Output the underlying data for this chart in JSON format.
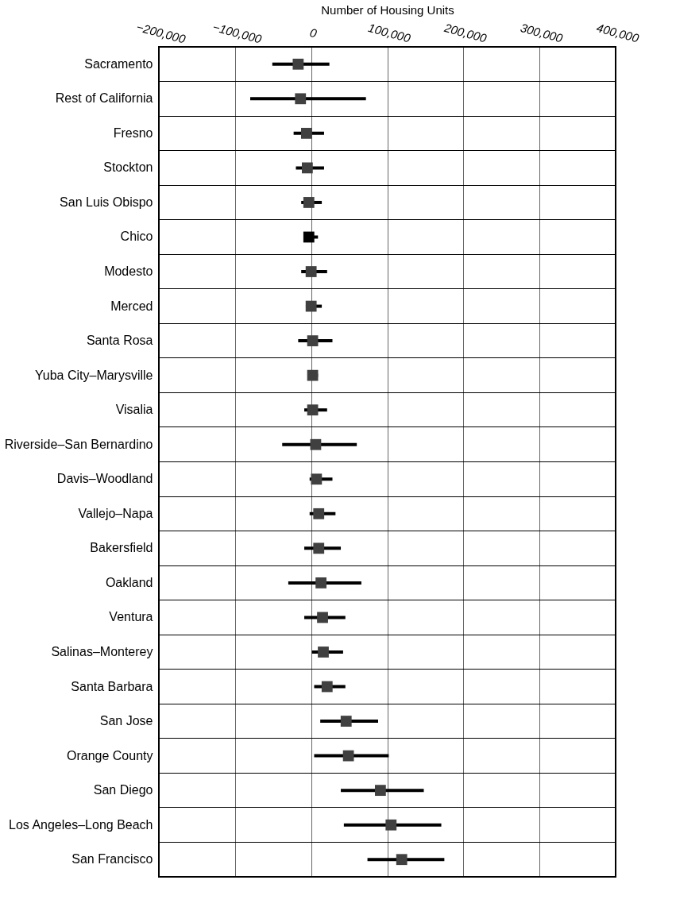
{
  "chart_data": {
    "type": "scatter",
    "orientation": "horizontal",
    "xlabel": "Number of Housing Units",
    "categories": [
      "Sacramento",
      "Rest of California",
      "Fresno",
      "Stockton",
      "San Luis Obispo",
      "Chico",
      "Modesto",
      "Merced",
      "Santa Rosa",
      "Yuba City–Marysville",
      "Visalia",
      "Riverside–San Bernardino",
      "Davis–Woodland",
      "Vallejo–Napa",
      "Bakersfield",
      "Oakland",
      "Ventura",
      "Salinas–Monterey",
      "Santa Barbara",
      "San Jose",
      "Orange County",
      "San Diego",
      "Los Angeles–Long Beach",
      "San Francisco"
    ],
    "values": [
      -17000,
      -14000,
      -6000,
      -5000,
      -3000,
      -3000,
      0,
      0,
      2000,
      2000,
      2000,
      6000,
      7000,
      10000,
      10000,
      13000,
      15000,
      16000,
      21000,
      46000,
      49000,
      91000,
      105000,
      119000
    ],
    "errors": [
      [
        -51000,
        24000
      ],
      [
        -80000,
        72000
      ],
      [
        -23000,
        17000
      ],
      [
        -20000,
        17000
      ],
      [
        -13000,
        14000
      ],
      [
        -10000,
        9000
      ],
      [
        -13000,
        21000
      ],
      [
        -7000,
        14000
      ],
      [
        -17000,
        28000
      ],
      [
        -4000,
        9000
      ],
      [
        -9000,
        21000
      ],
      [
        -38000,
        60000
      ],
      [
        -2000,
        28000
      ],
      [
        -2000,
        32000
      ],
      [
        -9000,
        39000
      ],
      [
        -30000,
        66000
      ],
      [
        -9000,
        45000
      ],
      [
        1000,
        42000
      ],
      [
        4000,
        45000
      ],
      [
        12000,
        88000
      ],
      [
        4000,
        102000
      ],
      [
        39000,
        148000
      ],
      [
        43000,
        171000
      ],
      [
        74000,
        175000
      ]
    ],
    "colors": [
      "#404040",
      "#404040",
      "#404040",
      "#404040",
      "#404040",
      "#000000",
      "#404040",
      "#404040",
      "#404040",
      "#404040",
      "#404040",
      "#404040",
      "#404040",
      "#404040",
      "#404040",
      "#404040",
      "#404040",
      "#404040",
      "#404040",
      "#404040",
      "#404040",
      "#404040",
      "#404040",
      "#404040"
    ],
    "xlim": [
      -200000,
      400000
    ],
    "xticks": [
      {
        "value": -200000,
        "label": "−200,000"
      },
      {
        "value": -100000,
        "label": "−100,000"
      },
      0,
      {
        "value": 100000,
        "label": "100,000"
      },
      {
        "value": 200000,
        "label": "200,000"
      },
      {
        "value": 300000,
        "label": "300,000"
      },
      {
        "value": 400000,
        "label": "400,000"
      }
    ],
    "grid": true,
    "marker": "square"
  }
}
